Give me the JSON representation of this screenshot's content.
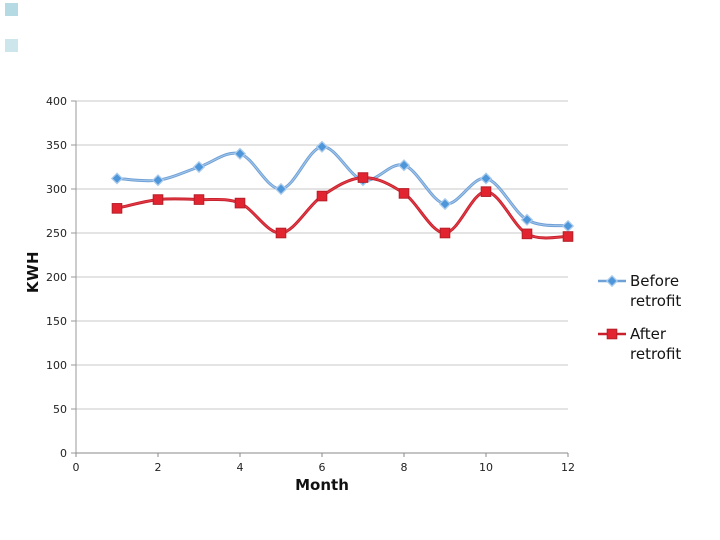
{
  "chart_data": {
    "type": "line",
    "title": "",
    "xlabel": "Month",
    "ylabel": "KWH",
    "xlim": [
      0,
      12
    ],
    "ylim": [
      0,
      400
    ],
    "x_ticks": [
      0,
      2,
      4,
      6,
      8,
      10,
      12
    ],
    "y_ticks": [
      0,
      50,
      100,
      150,
      200,
      250,
      300,
      350,
      400
    ],
    "grid": "horizontal",
    "grid_color": "#c9c9c9",
    "axis_color": "#999999",
    "legend_position": "right",
    "x": [
      1,
      2,
      3,
      4,
      5,
      6,
      7,
      8,
      9,
      10,
      11,
      12
    ],
    "series": [
      {
        "name": "Before retrofit",
        "marker": "diamond",
        "line_color": "#6FA0D6",
        "line_highlight": "#A9C9EB",
        "marker_fill": "#4D96D9",
        "marker_stroke": "#A9CAEC",
        "values": [
          312,
          310,
          325,
          340,
          300,
          348,
          310,
          327,
          283,
          312,
          265,
          258
        ]
      },
      {
        "name": "After retrofit",
        "marker": "square",
        "line_color": "#C8202C",
        "line_highlight": "#E4404B",
        "marker_fill": "#E22431",
        "marker_stroke": "#B61E28",
        "values": [
          278,
          288,
          288,
          284,
          250,
          292,
          313,
          295,
          250,
          297,
          249,
          246
        ]
      }
    ]
  },
  "decorations": {
    "corner_marks_color": "#3E9FB5"
  },
  "text_colors": {
    "tick_label": "#222222"
  }
}
